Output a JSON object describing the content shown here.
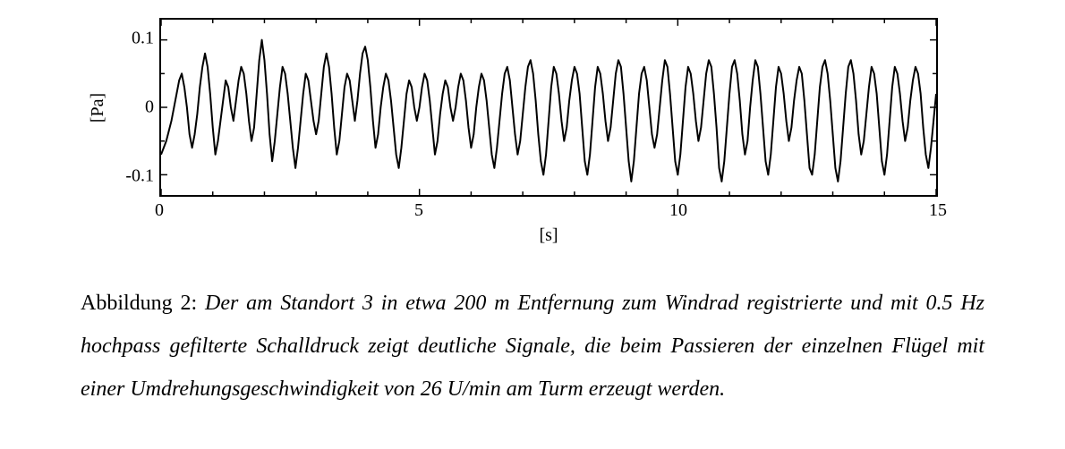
{
  "chart": {
    "type": "line",
    "x_min": 0,
    "x_max": 15,
    "y_min": -0.13,
    "y_max": 0.13,
    "xlabel": "[s]",
    "ylabel": "[Pa]",
    "xticks": [
      0,
      5,
      10,
      15
    ],
    "yticks": [
      -0.1,
      0,
      0.1
    ],
    "xtick_labels": [
      "0",
      "5",
      "10",
      "15"
    ],
    "ytick_labels": [
      "-0.1",
      "0",
      "0.1"
    ],
    "x_minor_step": 1,
    "y_minor_step": 0.05,
    "line_color": "#000000",
    "line_width": 2.0,
    "background_color": "#ffffff",
    "border_color": "#000000",
    "font_family": "Times New Roman",
    "label_fontsize": 20,
    "tick_fontsize": 20,
    "series_x": [
      0,
      0.05,
      0.1,
      0.15,
      0.2,
      0.25,
      0.3,
      0.35,
      0.4,
      0.45,
      0.5,
      0.55,
      0.6,
      0.65,
      0.7,
      0.75,
      0.8,
      0.85,
      0.9,
      0.95,
      1,
      1.05,
      1.1,
      1.15,
      1.2,
      1.25,
      1.3,
      1.35,
      1.4,
      1.45,
      1.5,
      1.55,
      1.6,
      1.65,
      1.7,
      1.75,
      1.8,
      1.85,
      1.9,
      1.95,
      2,
      2.05,
      2.1,
      2.15,
      2.2,
      2.25,
      2.3,
      2.35,
      2.4,
      2.45,
      2.5,
      2.55,
      2.6,
      2.65,
      2.7,
      2.75,
      2.8,
      2.85,
      2.9,
      2.95,
      3,
      3.05,
      3.1,
      3.15,
      3.2,
      3.25,
      3.3,
      3.35,
      3.4,
      3.45,
      3.5,
      3.55,
      3.6,
      3.65,
      3.7,
      3.75,
      3.8,
      3.85,
      3.9,
      3.95,
      4,
      4.05,
      4.1,
      4.15,
      4.2,
      4.25,
      4.3,
      4.35,
      4.4,
      4.45,
      4.5,
      4.55,
      4.6,
      4.65,
      4.7,
      4.75,
      4.8,
      4.85,
      4.9,
      4.95,
      5,
      5.05,
      5.1,
      5.15,
      5.2,
      5.25,
      5.3,
      5.35,
      5.4,
      5.45,
      5.5,
      5.55,
      5.6,
      5.65,
      5.7,
      5.75,
      5.8,
      5.85,
      5.9,
      5.95,
      6,
      6.05,
      6.1,
      6.15,
      6.2,
      6.25,
      6.3,
      6.35,
      6.4,
      6.45,
      6.5,
      6.55,
      6.6,
      6.65,
      6.7,
      6.75,
      6.8,
      6.85,
      6.9,
      6.95,
      7,
      7.05,
      7.1,
      7.15,
      7.2,
      7.25,
      7.3,
      7.35,
      7.4,
      7.45,
      7.5,
      7.55,
      7.6,
      7.65,
      7.7,
      7.75,
      7.8,
      7.85,
      7.9,
      7.95,
      8,
      8.05,
      8.1,
      8.15,
      8.2,
      8.25,
      8.3,
      8.35,
      8.4,
      8.45,
      8.5,
      8.55,
      8.6,
      8.65,
      8.7,
      8.75,
      8.8,
      8.85,
      8.9,
      8.95,
      9,
      9.05,
      9.1,
      9.15,
      9.2,
      9.25,
      9.3,
      9.35,
      9.4,
      9.45,
      9.5,
      9.55,
      9.6,
      9.65,
      9.7,
      9.75,
      9.8,
      9.85,
      9.9,
      9.95,
      10,
      10.05,
      10.1,
      10.15,
      10.2,
      10.25,
      10.3,
      10.35,
      10.4,
      10.45,
      10.5,
      10.55,
      10.6,
      10.65,
      10.7,
      10.75,
      10.8,
      10.85,
      10.9,
      10.95,
      11,
      11.05,
      11.1,
      11.15,
      11.2,
      11.25,
      11.3,
      11.35,
      11.4,
      11.45,
      11.5,
      11.55,
      11.6,
      11.65,
      11.7,
      11.75,
      11.8,
      11.85,
      11.9,
      11.95,
      12,
      12.05,
      12.1,
      12.15,
      12.2,
      12.25,
      12.3,
      12.35,
      12.4,
      12.45,
      12.5,
      12.55,
      12.6,
      12.65,
      12.7,
      12.75,
      12.8,
      12.85,
      12.9,
      12.95,
      13,
      13.05,
      13.1,
      13.15,
      13.2,
      13.25,
      13.3,
      13.35,
      13.4,
      13.45,
      13.5,
      13.55,
      13.6,
      13.65,
      13.7,
      13.75,
      13.8,
      13.85,
      13.9,
      13.95,
      14,
      14.05,
      14.1,
      14.15,
      14.2,
      14.25,
      14.3,
      14.35,
      14.4,
      14.45,
      14.5,
      14.55,
      14.6,
      14.65,
      14.7,
      14.75,
      14.8,
      14.85,
      14.9,
      14.95,
      15
    ],
    "series_y": [
      -0.07,
      -0.06,
      -0.05,
      -0.035,
      -0.02,
      0.0,
      0.02,
      0.04,
      0.05,
      0.03,
      0.0,
      -0.04,
      -0.06,
      -0.04,
      -0.01,
      0.03,
      0.06,
      0.08,
      0.06,
      0.02,
      -0.03,
      -0.07,
      -0.05,
      -0.02,
      0.01,
      0.04,
      0.03,
      0.0,
      -0.02,
      0.01,
      0.04,
      0.06,
      0.05,
      0.02,
      -0.02,
      -0.05,
      -0.03,
      0.02,
      0.07,
      0.1,
      0.07,
      0.02,
      -0.04,
      -0.08,
      -0.05,
      -0.01,
      0.03,
      0.06,
      0.05,
      0.02,
      -0.02,
      -0.06,
      -0.09,
      -0.06,
      -0.02,
      0.02,
      0.05,
      0.04,
      0.01,
      -0.02,
      -0.04,
      -0.02,
      0.02,
      0.06,
      0.08,
      0.06,
      0.02,
      -0.03,
      -0.07,
      -0.05,
      -0.01,
      0.03,
      0.05,
      0.04,
      0.01,
      -0.02,
      0.01,
      0.05,
      0.08,
      0.09,
      0.07,
      0.03,
      -0.02,
      -0.06,
      -0.04,
      0.0,
      0.03,
      0.05,
      0.04,
      0.01,
      -0.03,
      -0.07,
      -0.09,
      -0.06,
      -0.02,
      0.02,
      0.04,
      0.03,
      0.0,
      -0.02,
      0.0,
      0.03,
      0.05,
      0.04,
      0.01,
      -0.03,
      -0.07,
      -0.05,
      -0.01,
      0.02,
      0.04,
      0.03,
      0.0,
      -0.02,
      0.0,
      0.03,
      0.05,
      0.04,
      0.01,
      -0.03,
      -0.06,
      -0.04,
      0.0,
      0.03,
      0.05,
      0.04,
      0.01,
      -0.03,
      -0.07,
      -0.09,
      -0.06,
      -0.02,
      0.02,
      0.05,
      0.06,
      0.04,
      0.0,
      -0.04,
      -0.07,
      -0.05,
      -0.01,
      0.03,
      0.06,
      0.07,
      0.05,
      0.01,
      -0.04,
      -0.08,
      -0.1,
      -0.07,
      -0.02,
      0.03,
      0.06,
      0.05,
      0.02,
      -0.02,
      -0.05,
      -0.03,
      0.01,
      0.04,
      0.06,
      0.05,
      0.02,
      -0.03,
      -0.08,
      -0.1,
      -0.07,
      -0.02,
      0.03,
      0.06,
      0.05,
      0.02,
      -0.02,
      -0.05,
      -0.03,
      0.01,
      0.05,
      0.07,
      0.06,
      0.02,
      -0.03,
      -0.08,
      -0.11,
      -0.08,
      -0.03,
      0.02,
      0.05,
      0.06,
      0.04,
      0.0,
      -0.04,
      -0.06,
      -0.04,
      0.0,
      0.04,
      0.07,
      0.06,
      0.02,
      -0.03,
      -0.08,
      -0.1,
      -0.07,
      -0.02,
      0.03,
      0.06,
      0.05,
      0.02,
      -0.02,
      -0.05,
      -0.03,
      0.01,
      0.05,
      0.07,
      0.06,
      0.02,
      -0.03,
      -0.09,
      -0.11,
      -0.08,
      -0.03,
      0.02,
      0.06,
      0.07,
      0.05,
      0.01,
      -0.04,
      -0.07,
      -0.05,
      0.0,
      0.04,
      0.07,
      0.06,
      0.02,
      -0.03,
      -0.08,
      -0.1,
      -0.07,
      -0.02,
      0.03,
      0.06,
      0.05,
      0.02,
      -0.02,
      -0.05,
      -0.03,
      0.01,
      0.04,
      0.06,
      0.05,
      0.01,
      -0.04,
      -0.09,
      -0.1,
      -0.07,
      -0.02,
      0.03,
      0.06,
      0.07,
      0.05,
      0.01,
      -0.04,
      -0.09,
      -0.11,
      -0.08,
      -0.03,
      0.02,
      0.06,
      0.07,
      0.05,
      0.01,
      -0.04,
      -0.07,
      -0.05,
      -0.01,
      0.03,
      0.06,
      0.05,
      0.02,
      -0.03,
      -0.08,
      -0.1,
      -0.07,
      -0.02,
      0.03,
      0.06,
      0.05,
      0.02,
      -0.02,
      -0.05,
      -0.03,
      0.01,
      0.04,
      0.06,
      0.05,
      0.02,
      -0.03,
      -0.07,
      -0.09,
      -0.06,
      -0.02,
      0.02
    ]
  },
  "caption": {
    "label": "Abbildung 2: ",
    "body": "Der am Standort 3 in etwa 200 m Entfernung zum Windrad registrierte und mit 0.5 Hz hochpass gefilterte Schalldruck zeigt deutliche Signale, die beim Passieren der einzelnen Flügel mit einer Umdrehungsgeschwindigkeit von 26 U/min am Turm erzeugt werden."
  }
}
